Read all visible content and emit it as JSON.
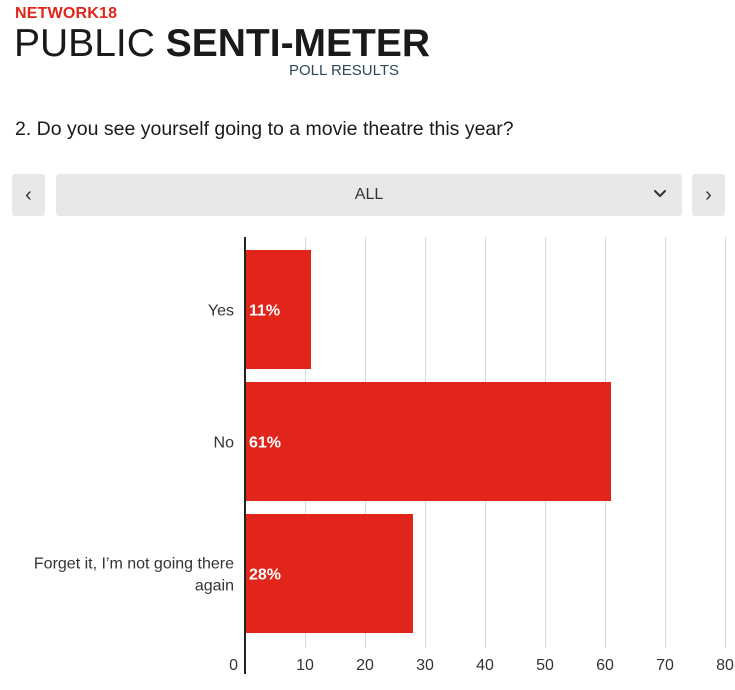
{
  "header": {
    "brand": "NETWORK18",
    "title_light": "PUBLIC ",
    "title_bold": "SENTI-METER",
    "subtitle": "POLL RESULTS"
  },
  "question": "2. Do you see yourself going to a movie theatre this year?",
  "filter": {
    "prev_label": "‹",
    "next_label": "›",
    "selected": "ALL"
  },
  "colors": {
    "bar": "#e1251b",
    "grid": "#d9d9d9",
    "axis": "#222222"
  },
  "chart_data": {
    "type": "bar",
    "orientation": "horizontal",
    "categories": [
      [
        "Yes"
      ],
      [
        "No"
      ],
      [
        "Forget it, I’m not going there",
        "again"
      ]
    ],
    "values": [
      11,
      61,
      28
    ],
    "data_labels": [
      "11%",
      "61%",
      "28%"
    ],
    "xlim": [
      0,
      80
    ],
    "xticks": [
      0,
      10,
      20,
      30,
      40,
      50,
      60,
      70,
      80
    ],
    "grid": true,
    "legend": "none"
  }
}
